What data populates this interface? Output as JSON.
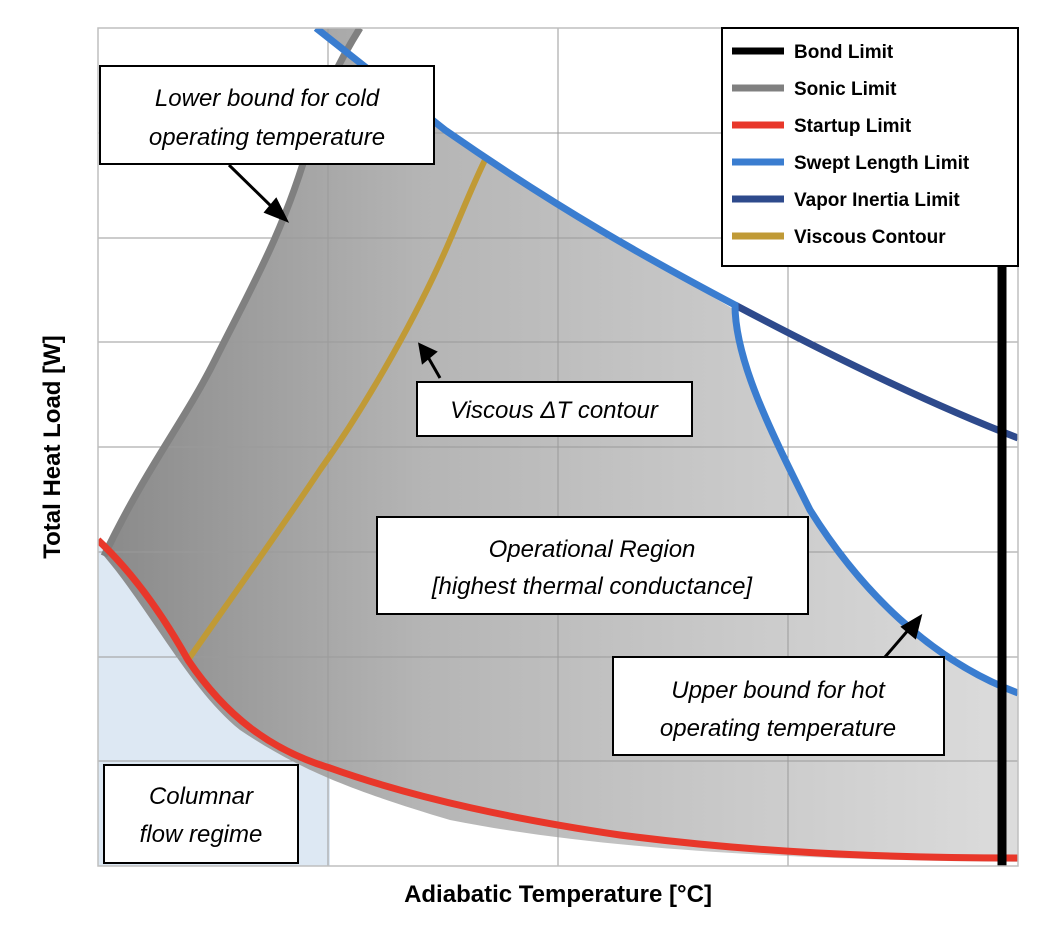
{
  "chart_data": {
    "type": "area",
    "title": "",
    "xlabel": "Adiabatic Temperature [°C]",
    "ylabel": "Total Heat Load [W]",
    "x_tick_labels": [],
    "y_tick_labels": [],
    "xlim": [
      0,
      1
    ],
    "ylim": [
      0,
      1
    ],
    "grid": true,
    "legend_position": "top-right",
    "series": [
      {
        "name": "Bond Limit",
        "color": "#000000",
        "x": [
          0.983,
          0.983
        ],
        "y": [
          0.0,
          0.72
        ]
      },
      {
        "name": "Sonic Limit",
        "color": "#808080",
        "x": [
          0.01,
          0.08,
          0.145,
          0.19,
          0.225,
          0.25,
          0.275
        ],
        "y": [
          0.37,
          0.45,
          0.56,
          0.67,
          0.78,
          0.88,
          1.0
        ]
      },
      {
        "name": "Startup Limit",
        "color": "#e8372a",
        "x": [
          0.0,
          0.05,
          0.1,
          0.15,
          0.2,
          0.25,
          0.3,
          0.4,
          0.5,
          0.6,
          0.7,
          0.8,
          0.9,
          1.0
        ],
        "y": [
          0.385,
          0.32,
          0.265,
          0.22,
          0.175,
          0.14,
          0.11,
          0.07,
          0.045,
          0.03,
          0.02,
          0.013,
          0.008,
          0.006
        ]
      },
      {
        "name": "Swept Length Limit",
        "color": "#3a7dd0",
        "x": [
          0.24,
          0.3,
          0.4,
          0.5,
          0.6,
          0.69,
          0.7,
          0.75,
          0.8,
          0.85,
          0.9,
          0.95,
          1.0
        ],
        "y": [
          1.0,
          0.9,
          0.79,
          0.7,
          0.63,
          0.66,
          0.63,
          0.5,
          0.4,
          0.32,
          0.26,
          0.21,
          0.2
        ]
      },
      {
        "name": "Vapor Inertia Limit",
        "color": "#2e4a8c",
        "x": [
          0.69,
          0.8,
          0.9,
          1.0
        ],
        "y": [
          0.66,
          0.6,
          0.54,
          0.5
        ]
      },
      {
        "name": "Viscous Contour",
        "color": "#c09a36",
        "x": [
          0.1,
          0.15,
          0.2,
          0.25,
          0.3,
          0.35,
          0.38,
          0.41
        ],
        "y": [
          0.245,
          0.32,
          0.42,
          0.53,
          0.64,
          0.76,
          0.84,
          0.91
        ]
      }
    ],
    "regions": [
      {
        "label": "Operational Region",
        "color": "#c8c8c8"
      },
      {
        "label": "Columnar flow regime",
        "color": "#dde8f3"
      }
    ],
    "annotations": [
      {
        "key": "lower",
        "lines": [
          "Lower bound for cold",
          "operating temperature"
        ]
      },
      {
        "key": "viscous",
        "lines": [
          "Viscous ΔT contour"
        ]
      },
      {
        "key": "operational",
        "lines": [
          "Operational Region",
          "[highest thermal conductance]"
        ]
      },
      {
        "key": "upper",
        "lines": [
          "Upper bound for hot",
          "operating temperature"
        ]
      },
      {
        "key": "columnar",
        "lines": [
          "Columnar",
          "flow regime"
        ]
      }
    ]
  }
}
